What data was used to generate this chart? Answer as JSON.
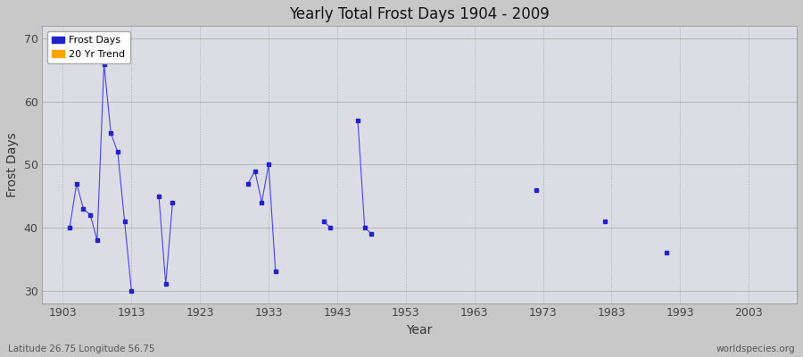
{
  "title": "Yearly Total Frost Days 1904 - 2009",
  "xlabel": "Year",
  "ylabel": "Frost Days",
  "xlim": [
    1900,
    2010
  ],
  "ylim": [
    28,
    72
  ],
  "yticks": [
    30,
    40,
    50,
    60,
    70
  ],
  "xticks": [
    1903,
    1913,
    1923,
    1933,
    1943,
    1953,
    1963,
    1973,
    1983,
    1993,
    2003
  ],
  "fig_bg": "#c8c8c8",
  "plot_bg": "#dcdce4",
  "line_color": "#4444ee",
  "marker_color": "#2222cc",
  "trend_color": "#ffa500",
  "subtitle_left": "Latitude 26.75 Longitude 56.75",
  "subtitle_right": "worldspecies.org",
  "clusters": [
    [
      [
        1904,
        40
      ],
      [
        1905,
        47
      ],
      [
        1906,
        43
      ],
      [
        1907,
        42
      ],
      [
        1908,
        38
      ],
      [
        1909,
        66
      ],
      [
        1910,
        55
      ],
      [
        1911,
        52
      ],
      [
        1912,
        41
      ],
      [
        1913,
        30
      ]
    ],
    [
      [
        1917,
        45
      ],
      [
        1918,
        31
      ],
      [
        1919,
        44
      ]
    ],
    [
      [
        1930,
        47
      ],
      [
        1931,
        49
      ],
      [
        1932,
        44
      ],
      [
        1933,
        50
      ],
      [
        1934,
        33
      ]
    ],
    [
      [
        1941,
        41
      ],
      [
        1942,
        40
      ]
    ],
    [
      [
        1946,
        57
      ],
      [
        1947,
        40
      ],
      [
        1948,
        39
      ]
    ],
    [
      [
        1972,
        46
      ]
    ],
    [
      [
        1982,
        41
      ]
    ],
    [
      [
        1991,
        36
      ]
    ]
  ]
}
